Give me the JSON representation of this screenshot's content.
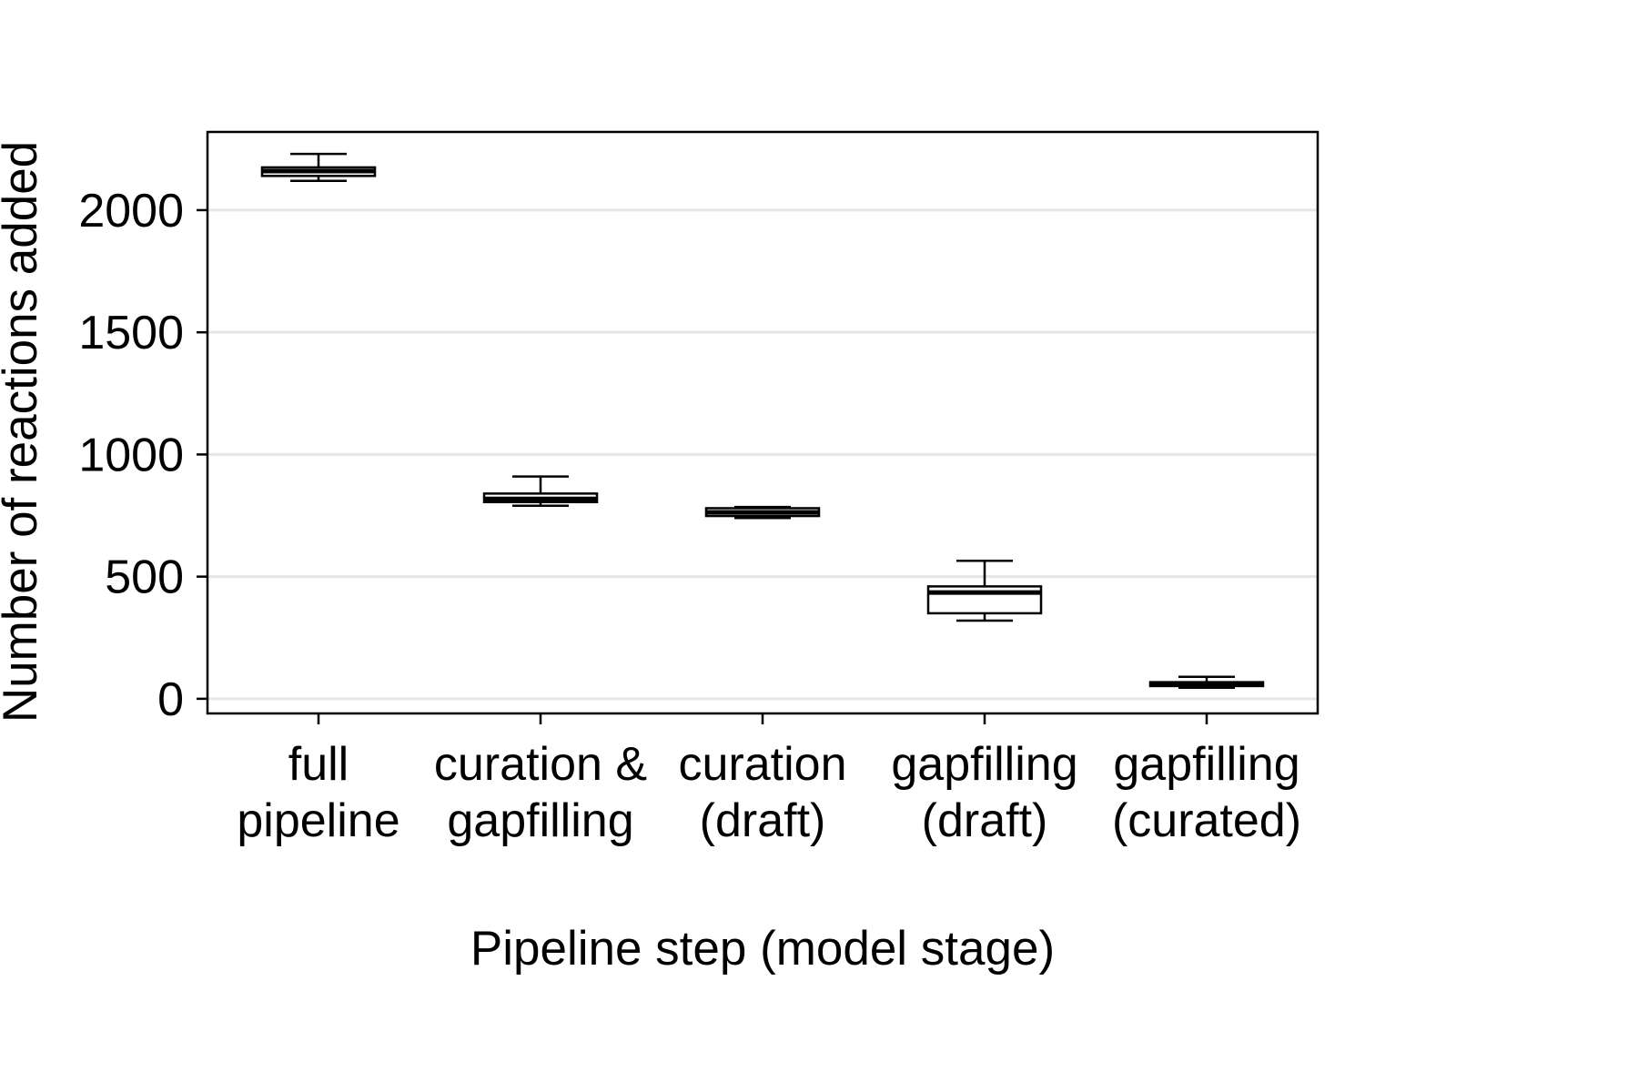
{
  "chart_data": {
    "type": "box",
    "title": "",
    "xlabel": "Pipeline step (model stage)",
    "ylabel": "Number of reactions added",
    "ylim": [
      -60,
      2320
    ],
    "yticks": [
      0,
      500,
      1000,
      1500,
      2000
    ],
    "grid": "horizontal",
    "categories": [
      [
        "full",
        "pipeline"
      ],
      [
        "curation &",
        "gapfilling"
      ],
      [
        "curation",
        "(draft)"
      ],
      [
        "gapfilling",
        "(draft)"
      ],
      [
        "gapfilling",
        "(curated)"
      ]
    ],
    "boxes": [
      {
        "whisker_low": 2120,
        "q1": 2140,
        "median": 2160,
        "q3": 2175,
        "whisker_high": 2230
      },
      {
        "whisker_low": 790,
        "q1": 805,
        "median": 818,
        "q3": 840,
        "whisker_high": 910
      },
      {
        "whisker_low": 740,
        "q1": 748,
        "median": 763,
        "q3": 780,
        "whisker_high": 785
      },
      {
        "whisker_low": 320,
        "q1": 350,
        "median": 435,
        "q3": 460,
        "whisker_high": 565
      },
      {
        "whisker_low": 45,
        "q1": 52,
        "median": 60,
        "q3": 68,
        "whisker_high": 90
      }
    ]
  }
}
